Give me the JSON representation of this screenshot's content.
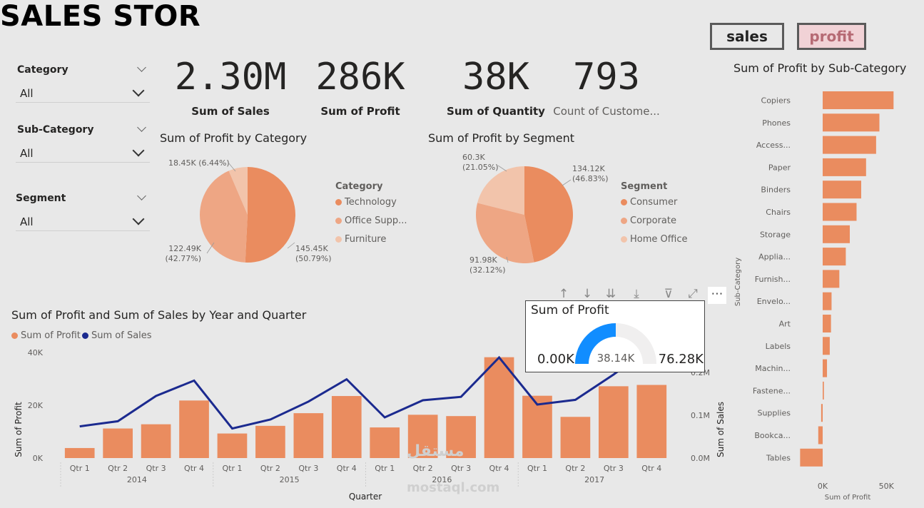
{
  "report": {
    "title": "SALES STOR"
  },
  "nav": {
    "sales_label": "sales",
    "profit_label": "profit"
  },
  "slicers": [
    {
      "title": "Category",
      "value": "All"
    },
    {
      "title": "Sub-Category",
      "value": "All"
    },
    {
      "title": "Segment",
      "value": "All"
    }
  ],
  "kpis": [
    {
      "value": "2.30M",
      "label": "Sum of Sales"
    },
    {
      "value": "286K",
      "label": "Sum of Profit"
    },
    {
      "value": "38K",
      "label": "Sum of Quantity"
    },
    {
      "value": "793",
      "label": "Count of Custome..."
    }
  ],
  "colors": {
    "primary": "#ea8c5f",
    "mid": "#eea684",
    "light": "#f2c4ab",
    "line": "#1b2a8f",
    "gauge": "#118dff",
    "gauge_bg": "#f0efef"
  },
  "chart_data": [
    {
      "type": "pie",
      "title": "Sum of Profit by Category",
      "legend_title": "Category",
      "legend_labels": [
        "Technology",
        "Office Supp...",
        "Furniture"
      ],
      "categories": [
        "Technology",
        "Office Supplies",
        "Furniture"
      ],
      "values": [
        145.45,
        122.49,
        18.45
      ],
      "unit": "K",
      "data_labels": [
        "145.45K\n(50.79%)",
        "122.49K\n(42.77%)",
        "18.45K (6.44%)"
      ]
    },
    {
      "type": "pie",
      "title": "Sum of Profit by Segment",
      "legend_title": "Segment",
      "legend_labels": [
        "Consumer",
        "Corporate",
        "Home Office"
      ],
      "categories": [
        "Consumer",
        "Corporate",
        "Home Office"
      ],
      "values": [
        134.12,
        91.98,
        60.3
      ],
      "unit": "K",
      "data_labels": [
        "134.12K\n(46.83%)",
        "91.98K\n(32.12%)",
        "60.3K\n(21.05%)"
      ]
    },
    {
      "type": "bar",
      "title": "Sum of Profit and Sum of Sales by Year and Quarter",
      "legend": [
        "Sum of Profit",
        "Sum of Sales"
      ],
      "xlabel": "Quarter",
      "ylabel": "Sum of Profit",
      "y2label": "Sum of Sales",
      "quarters": [
        "Qtr 1",
        "Qtr 2",
        "Qtr 3",
        "Qtr 4",
        "Qtr 1",
        "Qtr 2",
        "Qtr 3",
        "Qtr 4",
        "Qtr 1",
        "Qtr 2",
        "Qtr 3",
        "Qtr 4",
        "Qtr 1",
        "Qtr 2",
        "Qtr 3",
        "Qtr 4"
      ],
      "years": [
        "2014",
        "2015",
        "2016",
        "2017"
      ],
      "series": [
        {
          "name": "Sum of Profit",
          "values": [
            3800,
            11200,
            12800,
            21800,
            9300,
            12200,
            17000,
            23500,
            11600,
            16400,
            15900,
            38200,
            23600,
            15600,
            27200,
            27700
          ]
        },
        {
          "name": "Sum of Sales",
          "values": [
            74000,
            86000,
            145000,
            181000,
            69000,
            90000,
            132000,
            184000,
            95000,
            135000,
            143000,
            235000,
            125000,
            136000,
            195000,
            260000
          ]
        }
      ],
      "ylim": [
        0,
        40000
      ],
      "y2lim": [
        0,
        0.28
      ],
      "yticks": [
        "0K",
        "20K",
        "40K"
      ],
      "y2ticks": [
        "0.0M",
        "0.1M",
        "0.2M"
      ]
    },
    {
      "type": "bar",
      "orientation": "horizontal",
      "title": "Sum of Profit by Sub-Category",
      "ylabel": "Sub-Category",
      "xlabel": "Sum of Profit",
      "categories": [
        "Copiers",
        "Phones",
        "Access...",
        "Paper",
        "Binders",
        "Chairs",
        "Storage",
        "Applia...",
        "Furnish...",
        "Envelo...",
        "Art",
        "Labels",
        "Machin...",
        "Fastene...",
        "Supplies",
        "Bookca...",
        "Tables"
      ],
      "values": [
        55618,
        44516,
        41937,
        34054,
        30222,
        26590,
        21279,
        18138,
        13059,
        6964,
        6528,
        5546,
        3385,
        950,
        -1189,
        -3473,
        -17725
      ],
      "xticks": [
        "0K",
        "50K"
      ]
    },
    {
      "type": "gauge",
      "title": "Sum of Profit",
      "value": 38.14,
      "min": 0,
      "max": 76.28,
      "value_label": "38.14K",
      "min_label": "0.00K",
      "max_label": "76.28K"
    }
  ],
  "watermark": {
    "line1": "مستقل",
    "line2": "mostaql.com"
  }
}
